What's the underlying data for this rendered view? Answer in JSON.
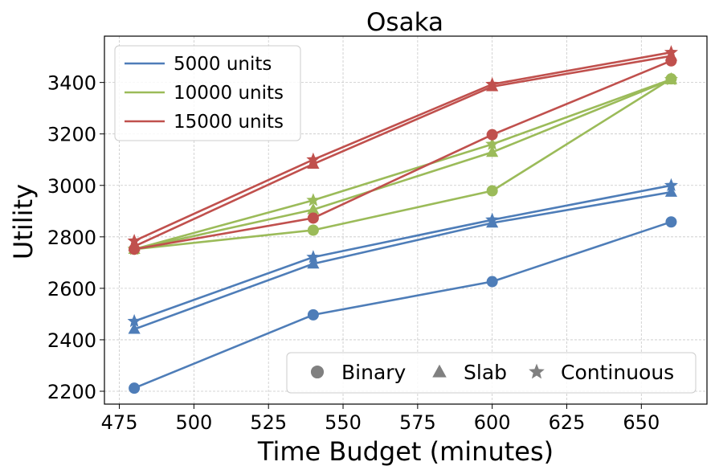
{
  "chart_data": {
    "type": "line",
    "title": "Osaka",
    "xlabel": "Time Budget (minutes)",
    "ylabel": "Utility",
    "xlim": [
      470,
      672
    ],
    "ylim": [
      2150,
      3580
    ],
    "xticks": [
      475,
      500,
      525,
      550,
      575,
      600,
      625,
      650
    ],
    "yticks": [
      2200,
      2400,
      2600,
      2800,
      3000,
      3200,
      3400
    ],
    "grid": true,
    "color_legend": {
      "placement": "top-left",
      "entries": [
        {
          "name": "5000 units",
          "color": "#4e7db8"
        },
        {
          "name": "10000 units",
          "color": "#9bbb59"
        },
        {
          "name": "15000 units",
          "color": "#c0504d"
        }
      ]
    },
    "marker_legend": {
      "placement": "bottom-right",
      "entries": [
        {
          "name": "Binary",
          "marker": "circle"
        },
        {
          "name": "Slab",
          "marker": "triangle"
        },
        {
          "name": "Continuous",
          "marker": "star"
        }
      ],
      "color": "#808080"
    },
    "x": [
      480,
      540,
      600,
      660
    ],
    "series": [
      {
        "units": "5000 units",
        "method": "Binary",
        "marker": "circle",
        "color": "#4e7db8",
        "values": [
          2212,
          2497,
          2626,
          2858
        ]
      },
      {
        "units": "5000 units",
        "method": "Slab",
        "marker": "triangle",
        "color": "#4e7db8",
        "values": [
          2441,
          2695,
          2854,
          2974
        ]
      },
      {
        "units": "5000 units",
        "method": "Continuous",
        "marker": "star",
        "color": "#4e7db8",
        "values": [
          2472,
          2721,
          2866,
          3000
        ]
      },
      {
        "units": "10000 units",
        "method": "Binary",
        "marker": "circle",
        "color": "#9bbb59",
        "values": [
          2752,
          2826,
          2979,
          3414
        ]
      },
      {
        "units": "10000 units",
        "method": "Slab",
        "marker": "triangle",
        "color": "#9bbb59",
        "values": [
          2752,
          2906,
          3129,
          3411
        ]
      },
      {
        "units": "10000 units",
        "method": "Continuous",
        "marker": "star",
        "color": "#9bbb59",
        "values": [
          2752,
          2942,
          3160,
          3412
        ]
      },
      {
        "units": "15000 units",
        "method": "Binary",
        "marker": "circle",
        "color": "#c0504d",
        "values": [
          2752,
          2873,
          3197,
          3484
        ]
      },
      {
        "units": "15000 units",
        "method": "Slab",
        "marker": "triangle",
        "color": "#c0504d",
        "values": [
          2763,
          3083,
          3384,
          3503
        ]
      },
      {
        "units": "15000 units",
        "method": "Continuous",
        "marker": "star",
        "color": "#c0504d",
        "values": [
          2784,
          3100,
          3393,
          3517
        ]
      }
    ]
  }
}
